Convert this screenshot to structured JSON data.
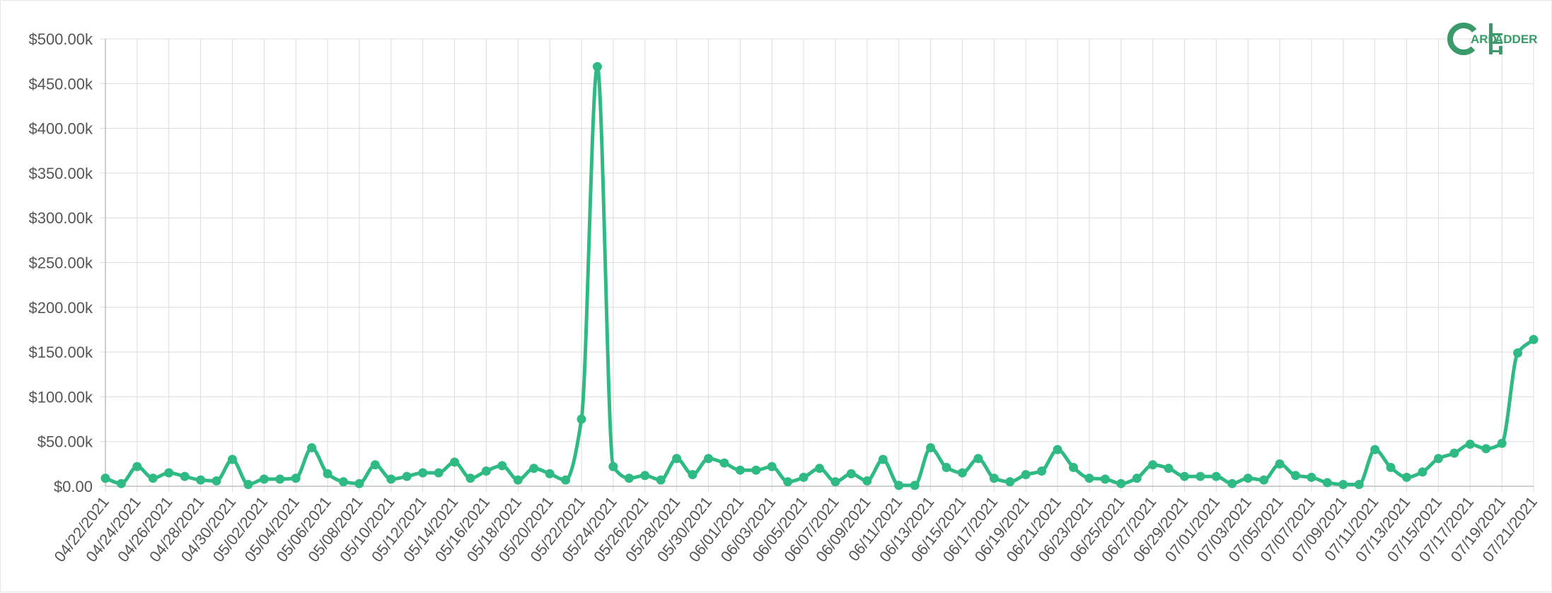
{
  "logo": {
    "name": "CardLadder",
    "part1": "ARD",
    "part2": "ADDER",
    "color": "#3a9a6a"
  },
  "colors": {
    "series": "#2fba84",
    "grid": "#dcdcdc",
    "axis": "#bdbdbd",
    "text": "#555555"
  },
  "chart_data": {
    "type": "line",
    "title": "",
    "xlabel": "",
    "ylabel": "",
    "ylim": [
      0,
      500000
    ],
    "yticks": [
      0,
      50000,
      100000,
      150000,
      200000,
      250000,
      300000,
      350000,
      400000,
      450000,
      500000
    ],
    "ytick_labels": [
      "$0.00",
      "$50.00k",
      "$100.00k",
      "$150.00k",
      "$200.00k",
      "$250.00k",
      "$300.00k",
      "$350.00k",
      "$400.00k",
      "$450.00k",
      "$500.00k"
    ],
    "grid": true,
    "x": [
      "04/22/2021",
      "04/23/2021",
      "04/24/2021",
      "04/25/2021",
      "04/26/2021",
      "04/27/2021",
      "04/28/2021",
      "04/29/2021",
      "04/30/2021",
      "05/01/2021",
      "05/02/2021",
      "05/03/2021",
      "05/04/2021",
      "05/05/2021",
      "05/06/2021",
      "05/07/2021",
      "05/08/2021",
      "05/09/2021",
      "05/10/2021",
      "05/11/2021",
      "05/12/2021",
      "05/13/2021",
      "05/14/2021",
      "05/15/2021",
      "05/16/2021",
      "05/17/2021",
      "05/18/2021",
      "05/19/2021",
      "05/20/2021",
      "05/21/2021",
      "05/22/2021",
      "05/23/2021",
      "05/24/2021",
      "05/25/2021",
      "05/26/2021",
      "05/27/2021",
      "05/28/2021",
      "05/29/2021",
      "05/30/2021",
      "05/31/2021",
      "06/01/2021",
      "06/02/2021",
      "06/03/2021",
      "06/04/2021",
      "06/05/2021",
      "06/06/2021",
      "06/07/2021",
      "06/08/2021",
      "06/09/2021",
      "06/10/2021",
      "06/11/2021",
      "06/12/2021",
      "06/13/2021",
      "06/14/2021",
      "06/15/2021",
      "06/16/2021",
      "06/17/2021",
      "06/18/2021",
      "06/19/2021",
      "06/20/2021",
      "06/21/2021",
      "06/22/2021",
      "06/23/2021",
      "06/24/2021",
      "06/25/2021",
      "06/26/2021",
      "06/27/2021",
      "06/28/2021",
      "06/29/2021",
      "06/30/2021",
      "07/01/2021",
      "07/02/2021",
      "07/03/2021",
      "07/04/2021",
      "07/05/2021",
      "07/06/2021",
      "07/07/2021",
      "07/08/2021",
      "07/09/2021",
      "07/10/2021",
      "07/11/2021",
      "07/12/2021",
      "07/13/2021",
      "07/14/2021",
      "07/15/2021",
      "07/16/2021",
      "07/17/2021",
      "07/18/2021",
      "07/19/2021",
      "07/20/2021",
      "07/21/2021"
    ],
    "xtick_labels": [
      "04/22/2021",
      "04/24/2021",
      "04/26/2021",
      "04/28/2021",
      "04/30/2021",
      "05/02/2021",
      "05/04/2021",
      "05/06/2021",
      "05/08/2021",
      "05/10/2021",
      "05/12/2021",
      "05/14/2021",
      "05/16/2021",
      "05/18/2021",
      "05/20/2021",
      "05/22/2021",
      "05/24/2021",
      "05/26/2021",
      "05/28/2021",
      "05/30/2021",
      "06/01/2021",
      "06/03/2021",
      "06/05/2021",
      "06/07/2021",
      "06/09/2021",
      "06/11/2021",
      "06/13/2021",
      "06/15/2021",
      "06/17/2021",
      "06/19/2021",
      "06/21/2021",
      "06/23/2021",
      "06/25/2021",
      "06/27/2021",
      "06/29/2021",
      "07/01/2021",
      "07/03/2021",
      "07/05/2021",
      "07/07/2021",
      "07/09/2021",
      "07/11/2021",
      "07/13/2021",
      "07/15/2021",
      "07/17/2021",
      "07/19/2021",
      "07/21/2021"
    ],
    "series": [
      {
        "values": [
          9000,
          3000,
          22000,
          9000,
          15000,
          11000,
          7000,
          6000,
          30000,
          2000,
          8000,
          8000,
          9000,
          43000,
          14000,
          5000,
          3000,
          24000,
          8000,
          11000,
          15000,
          15000,
          27000,
          9000,
          17000,
          23000,
          7000,
          20000,
          14000,
          7000,
          75000,
          469000,
          22000,
          9000,
          12000,
          7000,
          31000,
          13000,
          31000,
          26000,
          18000,
          18000,
          22000,
          5000,
          10000,
          20000,
          5000,
          14000,
          6000,
          30000,
          1000,
          1000,
          43000,
          21000,
          15000,
          31000,
          9000,
          5000,
          13000,
          17000,
          41000,
          21000,
          9000,
          8000,
          3000,
          9000,
          24000,
          20000,
          11000,
          11000,
          11000,
          3000,
          9000,
          7000,
          25000,
          12000,
          10000,
          4000,
          2000,
          2000,
          41000,
          21000,
          10000,
          16000,
          31000,
          37000,
          47000,
          42000,
          48000,
          149000,
          164000
        ]
      }
    ]
  }
}
